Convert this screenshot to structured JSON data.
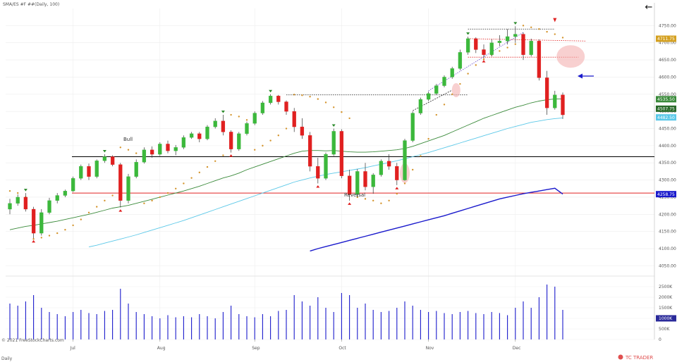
{
  "header": {
    "symbol_title": "SMA/ES #F ##(Daily, 100)",
    "back_icon": "back-arrow-icon",
    "back_glyph": "←"
  },
  "footer": {
    "copyright": "© 2021 FreeStockCharts.com",
    "period_label": "Daily",
    "brand": "TC TRADER"
  },
  "annotations": {
    "bull_label": "Bull",
    "reversal_label": "Reversal"
  },
  "colors": {
    "up_candle": "#3cb83c",
    "down_candle": "#e02020",
    "sma_short": "#3a8a3a",
    "sma_mid": "#5bc8e8",
    "sma_long": "#1a1acc",
    "sar_dots": "#d4942c",
    "support_line": "#000000",
    "resistance_line": "#e02020",
    "volume_bars": "#1a1acc",
    "accent_arrow": "#1a1acc"
  },
  "chart_data": {
    "type": "candlestick",
    "title": "SMA/ES #F ##(Daily, 100)",
    "price_axis": {
      "ylim": [
        4020,
        4800
      ],
      "ticks": [
        4050,
        4100,
        4150,
        4200,
        4250,
        4300,
        4350,
        4400,
        4450,
        4500,
        4550,
        4600,
        4650,
        4700,
        4750
      ],
      "tick_labels": [
        "4050.00",
        "4100.00",
        "4150.00",
        "4200.00",
        "4250.00",
        "4300.00",
        "4350.00",
        "4400.00",
        "4450.00",
        "4500.00",
        "4550.00",
        "4600.00",
        "4650.00",
        "4700.00",
        "4750.00"
      ]
    },
    "volume_axis": {
      "ylim": [
        0,
        3000000
      ],
      "ticks": [
        0,
        500000,
        1000000,
        1500000,
        2000000,
        2500000
      ],
      "tick_labels": [
        "0",
        "500K",
        "1000K",
        "1500K",
        "2000K",
        "2500K"
      ]
    },
    "x_labels": [
      {
        "index": 8,
        "label": "Jul"
      },
      {
        "index": 19,
        "label": "Aug"
      },
      {
        "index": 31,
        "label": "Sep"
      },
      {
        "index": 42,
        "label": "Oct"
      },
      {
        "index": 53,
        "label": "Nov"
      },
      {
        "index": 64,
        "label": "Dec"
      }
    ],
    "price_tags": [
      {
        "value": 4711.75,
        "label": "4711.75",
        "color": "#d4a020"
      },
      {
        "value": 4535.5,
        "label": "4535.50",
        "color": "#3a8a3a"
      },
      {
        "value": 4507.75,
        "label": "4507.75",
        "color": "#2a6a2a"
      },
      {
        "value": 4482.5,
        "label": "4482.50",
        "color": "#5bc8e8"
      },
      {
        "value": 4258.75,
        "label": "4258.75",
        "color": "#1a1acc"
      }
    ],
    "volume_tag": {
      "value": 1000000,
      "label": "1000K"
    },
    "horizontal_lines": [
      {
        "name": "support",
        "value": 4368,
        "color": "#000000"
      },
      {
        "name": "resistance",
        "value": 4262,
        "color": "#e02020"
      }
    ],
    "candles": [
      [
        4215,
        4245,
        4200,
        4232
      ],
      [
        4232,
        4258,
        4225,
        4250
      ],
      [
        4250,
        4262,
        4208,
        4215
      ],
      [
        4215,
        4222,
        4130,
        4145
      ],
      [
        4145,
        4215,
        4138,
        4205
      ],
      [
        4205,
        4248,
        4200,
        4240
      ],
      [
        4240,
        4262,
        4232,
        4255
      ],
      [
        4255,
        4272,
        4250,
        4268
      ],
      [
        4268,
        4310,
        4265,
        4305
      ],
      [
        4305,
        4345,
        4300,
        4340
      ],
      [
        4340,
        4348,
        4300,
        4310
      ],
      [
        4310,
        4360,
        4305,
        4356
      ],
      [
        4356,
        4375,
        4350,
        4368
      ],
      [
        4368,
        4372,
        4340,
        4345
      ],
      [
        4345,
        4350,
        4220,
        4240
      ],
      [
        4240,
        4318,
        4232,
        4310
      ],
      [
        4310,
        4360,
        4305,
        4352
      ],
      [
        4352,
        4395,
        4348,
        4388
      ],
      [
        4388,
        4398,
        4365,
        4375
      ],
      [
        4375,
        4410,
        4370,
        4405
      ],
      [
        4405,
        4415,
        4378,
        4385
      ],
      [
        4385,
        4402,
        4372,
        4395
      ],
      [
        4395,
        4430,
        4390,
        4424
      ],
      [
        4424,
        4440,
        4420,
        4435
      ],
      [
        4435,
        4440,
        4410,
        4420
      ],
      [
        4420,
        4460,
        4416,
        4455
      ],
      [
        4455,
        4480,
        4450,
        4472
      ],
      [
        4472,
        4490,
        4430,
        4440
      ],
      [
        4440,
        4445,
        4380,
        4390
      ],
      [
        4390,
        4440,
        4385,
        4435
      ],
      [
        4435,
        4470,
        4430,
        4465
      ],
      [
        4465,
        4500,
        4460,
        4495
      ],
      [
        4495,
        4530,
        4490,
        4525
      ],
      [
        4525,
        4550,
        4520,
        4545
      ],
      [
        4545,
        4548,
        4520,
        4528
      ],
      [
        4528,
        4532,
        4490,
        4500
      ],
      [
        4500,
        4510,
        4440,
        4455
      ],
      [
        4455,
        4480,
        4420,
        4430
      ],
      [
        4430,
        4440,
        4325,
        4340
      ],
      [
        4340,
        4365,
        4290,
        4305
      ],
      [
        4305,
        4380,
        4300,
        4375
      ],
      [
        4375,
        4450,
        4370,
        4442
      ],
      [
        4442,
        4448,
        4305,
        4312
      ],
      [
        4312,
        4330,
        4240,
        4258
      ],
      [
        4258,
        4332,
        4250,
        4325
      ],
      [
        4325,
        4350,
        4270,
        4280
      ],
      [
        4280,
        4320,
        4260,
        4315
      ],
      [
        4315,
        4360,
        4310,
        4355
      ],
      [
        4355,
        4375,
        4330,
        4340
      ],
      [
        4340,
        4350,
        4285,
        4300
      ],
      [
        4300,
        4420,
        4298,
        4415
      ],
      [
        4415,
        4500,
        4410,
        4495
      ],
      [
        4495,
        4540,
        4490,
        4535
      ],
      [
        4535,
        4558,
        4530,
        4552
      ],
      [
        4552,
        4580,
        4548,
        4575
      ],
      [
        4575,
        4605,
        4570,
        4600
      ],
      [
        4600,
        4630,
        4595,
        4625
      ],
      [
        4625,
        4680,
        4620,
        4672
      ],
      [
        4672,
        4718,
        4665,
        4712
      ],
      [
        4712,
        4716,
        4670,
        4680
      ],
      [
        4680,
        4695,
        4655,
        4665
      ],
      [
        4665,
        4710,
        4660,
        4700
      ],
      [
        4700,
        4722,
        4690,
        4705
      ],
      [
        4705,
        4740,
        4695,
        4718
      ],
      [
        4718,
        4748,
        4700,
        4725
      ],
      [
        4725,
        4730,
        4650,
        4665
      ],
      [
        4665,
        4712,
        4660,
        4705
      ],
      [
        4705,
        4710,
        4590,
        4598
      ],
      [
        4598,
        4618,
        4490,
        4510
      ],
      [
        4510,
        4560,
        4505,
        4548
      ],
      [
        4548,
        4555,
        4478,
        4490
      ]
    ],
    "volume": [
      1700000,
      1600000,
      1800000,
      2100000,
      1500000,
      1300000,
      1200000,
      1100000,
      1300000,
      1400000,
      1250000,
      1200000,
      1350000,
      1400000,
      2400000,
      1700000,
      1300000,
      1200000,
      1100000,
      1000000,
      1150000,
      1050000,
      1100000,
      1050000,
      1200000,
      1100000,
      1000000,
      1300000,
      1600000,
      1200000,
      1100000,
      1050000,
      1200000,
      1100000,
      1350000,
      1400000,
      2100000,
      1800000,
      1600000,
      2000000,
      1500000,
      1300000,
      2200000,
      2100000,
      1500000,
      1700000,
      1400000,
      1300000,
      1350000,
      1500000,
      1800000,
      1600000,
      1400000,
      1300000,
      1350000,
      1250000,
      1200000,
      1300000,
      1350000,
      1250000,
      1200000,
      1300000,
      1250000,
      1150000,
      1500000,
      1800000,
      1500000,
      2000000,
      2600000,
      2500000,
      1400000
    ],
    "sar": [
      4268,
      4262,
      4250,
      4128,
      4132,
      4138,
      4145,
      4155,
      4168,
      4185,
      4205,
      4222,
      4240,
      4255,
      4395,
      4388,
      4378,
      4232,
      4240,
      4250,
      4262,
      4275,
      4290,
      4306,
      4322,
      4338,
      4355,
      4372,
      4490,
      4485,
      4475,
      4388,
      4400,
      4415,
      4430,
      4450,
      4549,
      4547,
      4543,
      4536,
      4526,
      4512,
      4498,
      4480,
      4250,
      4245,
      4240,
      4232,
      4240,
      4260,
      4290,
      4330,
      4370,
      4420,
      4490,
      4520,
      4550,
      4580,
      4610,
      4635,
      4652,
      4665,
      4676,
      4686,
      4696,
      4750,
      4745,
      4740,
      4732,
      4725,
      4715
    ],
    "sma_short": [
      4155,
      4160,
      4165,
      4168,
      4172,
      4176,
      4180,
      4185,
      4190,
      4195,
      4200,
      4206,
      4212,
      4218,
      4222,
      4226,
      4232,
      4238,
      4244,
      4250,
      4256,
      4262,
      4268,
      4275,
      4282,
      4290,
      4298,
      4306,
      4312,
      4320,
      4330,
      4338,
      4346,
      4354,
      4362,
      4370,
      4378,
      4384,
      4386,
      4386,
      4385,
      4386,
      4384,
      4382,
      4381,
      4381,
      4382,
      4384,
      4386,
      4388,
      4392,
      4398,
      4406,
      4414,
      4422,
      4430,
      4440,
      4450,
      4460,
      4470,
      4480,
      4488,
      4496,
      4504,
      4512,
      4518,
      4525,
      4530,
      4534,
      4536,
      4536
    ],
    "sma_mid": [
      null,
      null,
      null,
      null,
      null,
      null,
      null,
      null,
      null,
      null,
      4105,
      4110,
      4116,
      4122,
      4128,
      4134,
      4140,
      4147,
      4154,
      4161,
      4168,
      4175,
      4182,
      4190,
      4198,
      4206,
      4214,
      4222,
      4230,
      4238,
      4246,
      4254,
      4262,
      4270,
      4278,
      4286,
      4294,
      4300,
      4306,
      4311,
      4316,
      4320,
      4324,
      4328,
      4332,
      4336,
      4341,
      4346,
      4351,
      4356,
      4362,
      4368,
      4374,
      4380,
      4387,
      4394,
      4401,
      4408,
      4415,
      4422,
      4429,
      4436,
      4443,
      4450,
      4456,
      4462,
      4468,
      4472,
      4476,
      4479,
      4481
    ],
    "sma_long": [
      null,
      null,
      null,
      null,
      null,
      null,
      null,
      null,
      null,
      null,
      null,
      null,
      null,
      null,
      null,
      null,
      null,
      null,
      null,
      null,
      null,
      null,
      null,
      null,
      null,
      null,
      null,
      null,
      null,
      null,
      null,
      null,
      null,
      null,
      null,
      null,
      null,
      null,
      4093,
      4100,
      4106,
      4112,
      4118,
      4124,
      4130,
      4136,
      4142,
      4148,
      4154,
      4160,
      4166,
      4172,
      4178,
      4184,
      4190,
      4196,
      4203,
      4210,
      4217,
      4224,
      4231,
      4238,
      4245,
      4250,
      4255,
      4260,
      4264,
      4268,
      4272,
      4276,
      4259
    ]
  }
}
